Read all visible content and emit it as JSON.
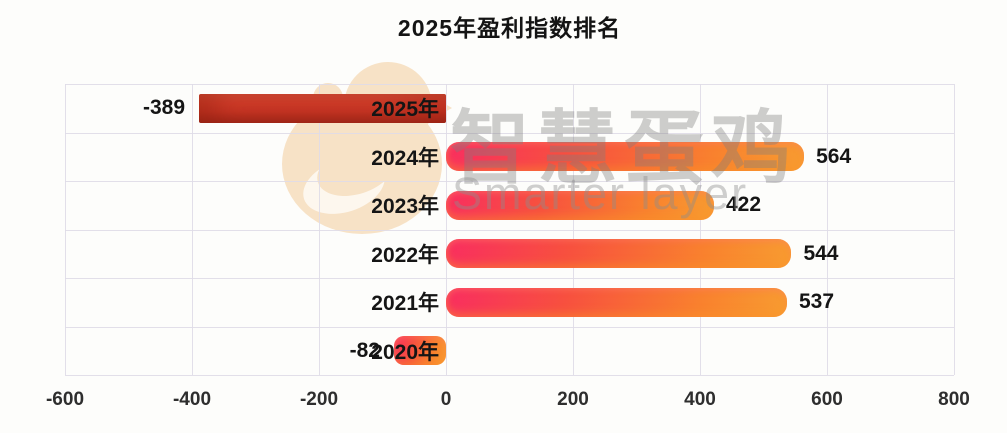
{
  "title": "2025年盈利指数排名",
  "watermark": {
    "cn_text": "智慧蛋鸡",
    "en_text": "Smarter layer",
    "logo": "chick-logo",
    "logo_color": "#f7e2c6",
    "text_color": "#8c8c8c"
  },
  "colors": {
    "background": "#fdfdfb",
    "grid": "#dfdbe7",
    "label": "#151515",
    "bar_red_start": "#dd4330",
    "bar_red_end": "#a92c1e",
    "bar_pink": "#f92e60",
    "bar_orange": "#f89c31"
  },
  "chart_data": {
    "type": "bar",
    "orientation": "horizontal",
    "title": "2025年盈利指数排名",
    "categories": [
      "2025年",
      "2024年",
      "2023年",
      "2022年",
      "2021年",
      "2020年"
    ],
    "values": [
      -389,
      564,
      422,
      544,
      537,
      -82
    ],
    "value_labels": [
      "-389",
      "564",
      "422",
      "544",
      "537",
      "-82"
    ],
    "bar_styles": [
      "red-solid",
      "pink-orange",
      "pink-orange",
      "pink-orange",
      "pink-orange",
      "pink-orange"
    ],
    "xlabel": "",
    "ylabel": "",
    "xlim": [
      -600,
      800
    ],
    "xticks": [
      -600,
      -400,
      -200,
      0,
      200,
      400,
      600,
      800
    ],
    "xtick_labels": [
      "-600",
      "-400",
      "-200",
      "0",
      "200",
      "400",
      "600",
      "800"
    ],
    "grid": true,
    "legend_position": "none"
  }
}
